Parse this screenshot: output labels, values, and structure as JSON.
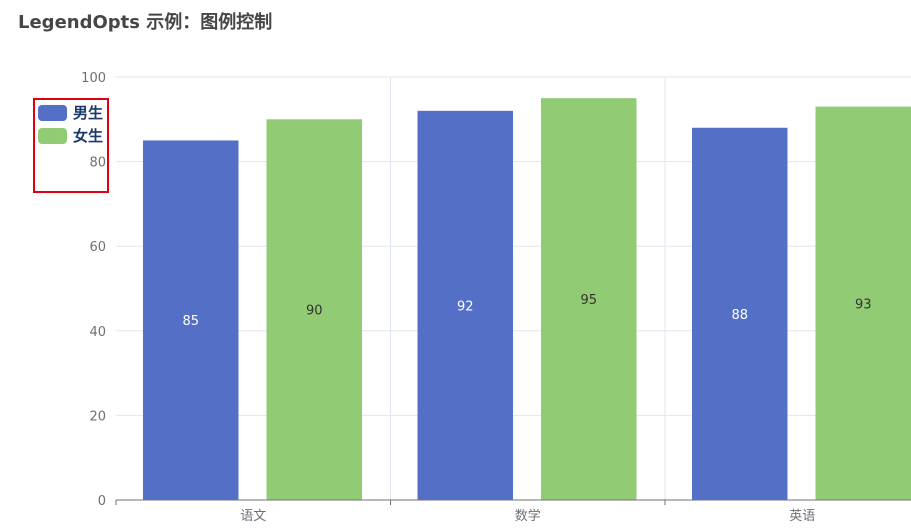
{
  "title": "LegendOpts 示例：图例控制",
  "chart_data": {
    "type": "bar",
    "categories": [
      "语文",
      "数学",
      "英语"
    ],
    "series": [
      {
        "name": "男生",
        "values": [
          85,
          92,
          88
        ],
        "color": "#5470c6"
      },
      {
        "name": "女生",
        "values": [
          90,
          95,
          93
        ],
        "color": "#91cc75"
      }
    ],
    "ylim": [
      0,
      100
    ],
    "yticks": [
      0,
      20,
      40,
      60,
      80,
      100
    ],
    "grid": true,
    "legend_position": "left",
    "data_labels": true,
    "legend_highlight_color": "#e0000f"
  }
}
